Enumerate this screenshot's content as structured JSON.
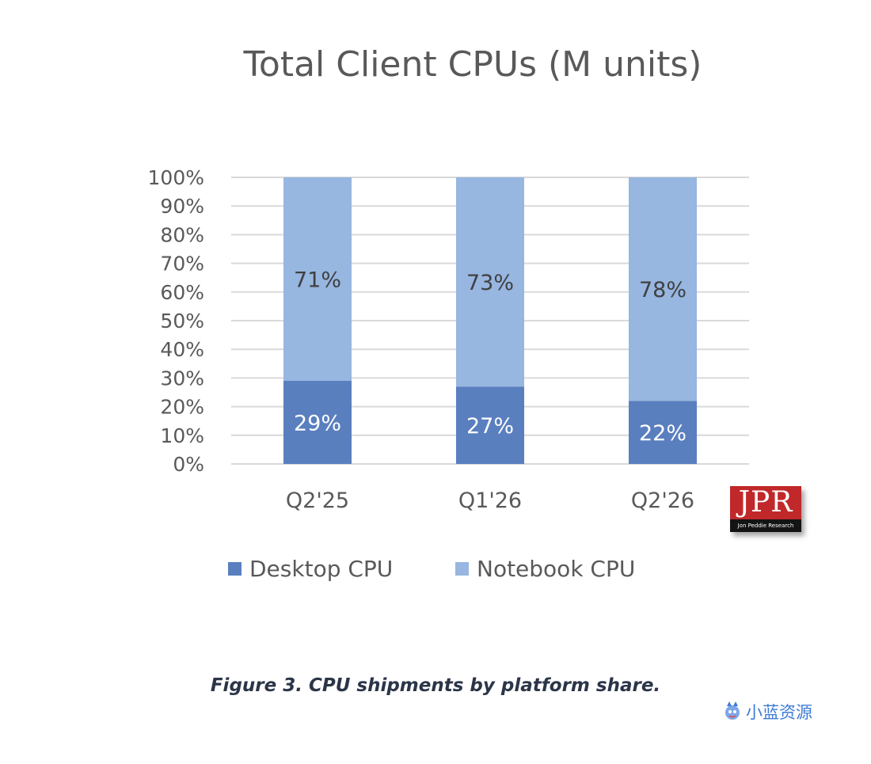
{
  "chart_data": {
    "type": "bar",
    "stacked": true,
    "title": "Total Client CPUs (M units)",
    "categories": [
      "Q2'25",
      "Q1'26",
      "Q2'26"
    ],
    "series": [
      {
        "name": "Desktop CPU",
        "values": [
          29,
          27,
          22
        ],
        "labels": [
          "29%",
          "27%",
          "22%"
        ],
        "color": "#5a7fbf"
      },
      {
        "name": "Notebook CPU",
        "values": [
          71,
          73,
          78
        ],
        "labels": [
          "71%",
          "73%",
          "78%"
        ],
        "color": "#97b6e0"
      }
    ],
    "ylim": [
      0,
      100
    ],
    "yticks": [
      "0%",
      "10%",
      "20%",
      "30%",
      "40%",
      "50%",
      "60%",
      "70%",
      "80%",
      "90%",
      "100%"
    ],
    "grid": true,
    "legend_position": "bottom"
  },
  "caption": "Figure 3. CPU shipments by platform share.",
  "logo": {
    "text": "JPR",
    "subtext": "Jon Peddie Research"
  },
  "watermark": {
    "text": "小蓝资源"
  },
  "colors": {
    "gridline": "#d9d9d9",
    "text": "#595959",
    "caption": "#2b3548"
  }
}
